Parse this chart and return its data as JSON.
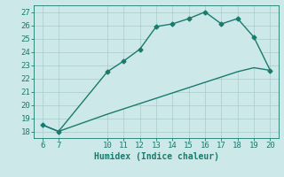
{
  "xlabel": "Humidex (Indice chaleur)",
  "x_upper": [
    6,
    7,
    10,
    11,
    12,
    13,
    14,
    15,
    16,
    17,
    18,
    19,
    20
  ],
  "y_upper": [
    18.5,
    18.0,
    22.5,
    23.3,
    24.2,
    25.9,
    26.1,
    26.5,
    27.0,
    26.1,
    26.5,
    25.1,
    22.6
  ],
  "x_lower": [
    6,
    7,
    10,
    11,
    12,
    13,
    14,
    15,
    16,
    17,
    18,
    19,
    20
  ],
  "y_lower": [
    18.5,
    18.0,
    19.3,
    19.7,
    20.1,
    20.5,
    20.9,
    21.3,
    21.7,
    22.1,
    22.5,
    22.8,
    22.6
  ],
  "line_color": "#1a7a6e",
  "bg_color": "#cce8e8",
  "grid_color": "#aacccc",
  "xlim": [
    5.5,
    20.5
  ],
  "ylim": [
    17.5,
    27.5
  ],
  "xticks": [
    6,
    7,
    10,
    11,
    12,
    13,
    14,
    15,
    16,
    17,
    18,
    19,
    20
  ],
  "yticks": [
    18,
    19,
    20,
    21,
    22,
    23,
    24,
    25,
    26,
    27
  ],
  "marker_size": 2.5,
  "line_width": 1.0,
  "xlabel_fontsize": 7,
  "tick_fontsize": 6.5
}
